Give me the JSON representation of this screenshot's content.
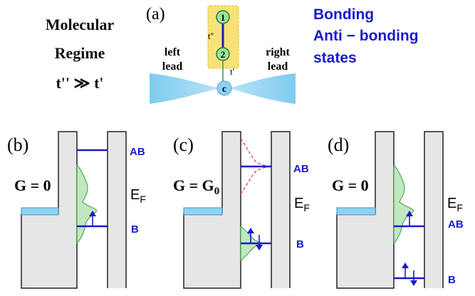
{
  "title_block": {
    "line1": "Molecular",
    "line2": "Regime",
    "line3": "t'' ≫ t'"
  },
  "legend_block": {
    "line1": "Bonding",
    "line2": "Anti − bonding",
    "line3": "states"
  },
  "panel_a": {
    "label": "(a)",
    "site1": "1",
    "site2": "2",
    "site_c": "c",
    "hop_inner": "t''",
    "hop_outer": "t'",
    "left_lead": [
      "left",
      "lead"
    ],
    "right_lead": [
      "right",
      "lead"
    ]
  },
  "panel_b": {
    "label": "(b)",
    "conductance": "G = 0",
    "level_top": "AB",
    "level_bottom": "B",
    "fermi": "E",
    "fermi_sub": "F"
  },
  "panel_c": {
    "label": "(c)",
    "conductance": "G = G",
    "conductance_sub": "0",
    "level_top": "AB",
    "level_bottom": "B",
    "fermi": "E",
    "fermi_sub": "F"
  },
  "panel_d": {
    "label": "(d)",
    "conductance": "G = 0",
    "level_top": "AB",
    "level_bottom": "B",
    "fermi": "E",
    "fermi_sub": "F"
  },
  "colors": {
    "level_blue": "#1a1acc",
    "lead_blue": "#8fd3f2",
    "dot_green": "#9be29b",
    "molecule_yellow": "#f7e27a",
    "barrier_gray": "#e6e6e6",
    "dos_green": "#bfe8bf",
    "dashed_red": "#e03030"
  }
}
